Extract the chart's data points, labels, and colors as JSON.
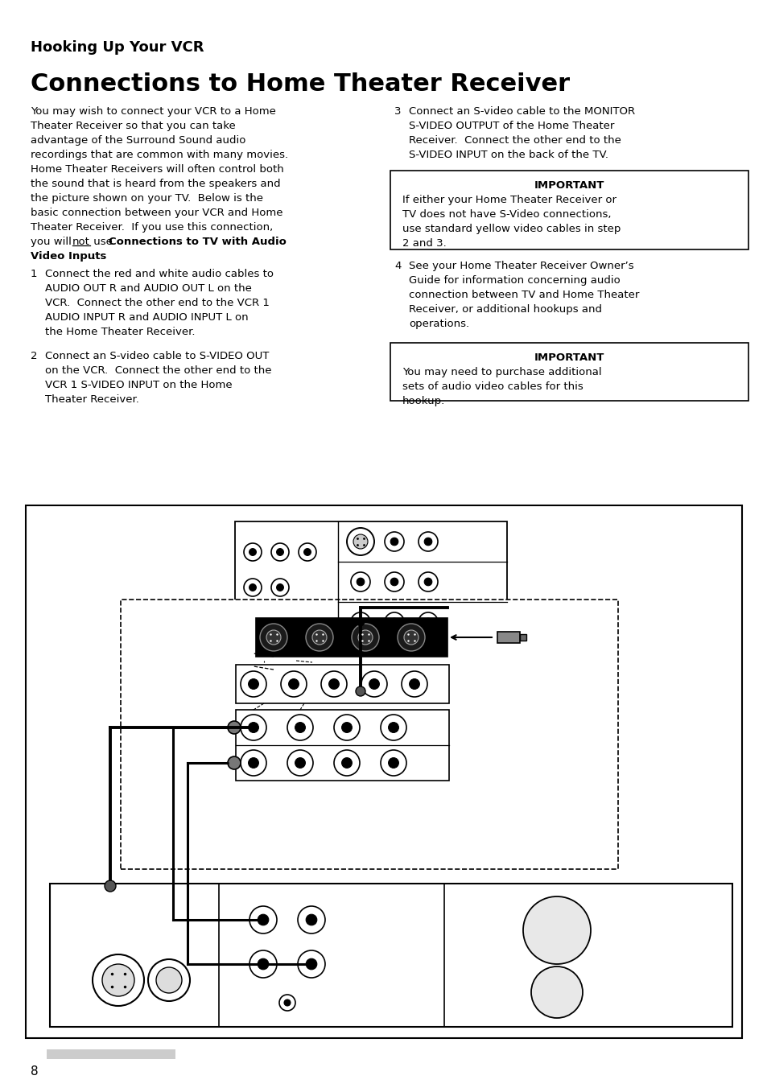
{
  "title_small": "Hooking Up Your VCR",
  "title_large": "Connections to Home Theater Receiver",
  "important1_title": "IMPORTANT",
  "important1_text_lines": [
    "If either your Home Theater Receiver or",
    "TV does not have S-Video connections,",
    "use standard yellow video cables in step",
    "2 and 3."
  ],
  "important2_title": "IMPORTANT",
  "important2_text_lines": [
    "You may need to purchase additional",
    "sets of audio video cables for this",
    "hookup."
  ],
  "page_num": "8",
  "bg_color": "#ffffff",
  "text_color": "#000000"
}
